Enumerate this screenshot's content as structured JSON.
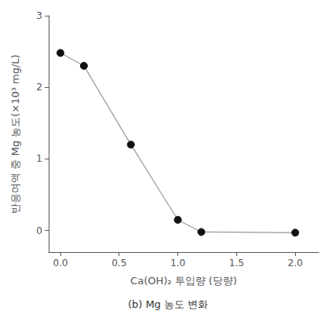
{
  "chart_data": {
    "type": "line",
    "title": "(b) Mg 농도 변화",
    "x_label": "Ca(OH)₂ 투입량 (당량)",
    "y_label": "반응여액 중 Mg 농도(×10³ mg/L)",
    "x": [
      0.0,
      0.2,
      0.6,
      1.0,
      1.2,
      2.0
    ],
    "series": [
      {
        "values": [
          2.48,
          2.3,
          1.2,
          0.15,
          -0.02,
          -0.03
        ],
        "color": "#999999",
        "marker": "circle",
        "marker_color": "#111111"
      }
    ],
    "xlim": [
      -0.1,
      2.2
    ],
    "ylim": [
      -0.3,
      3.0
    ],
    "xticks": [
      {
        "value": 0,
        "label": "0.0"
      },
      0.5,
      {
        "value": 1,
        "label": "1.0"
      },
      1.5,
      {
        "value": 2,
        "label": "2.0"
      }
    ],
    "yticks": [
      0,
      1,
      2,
      3
    ],
    "grid": false
  }
}
